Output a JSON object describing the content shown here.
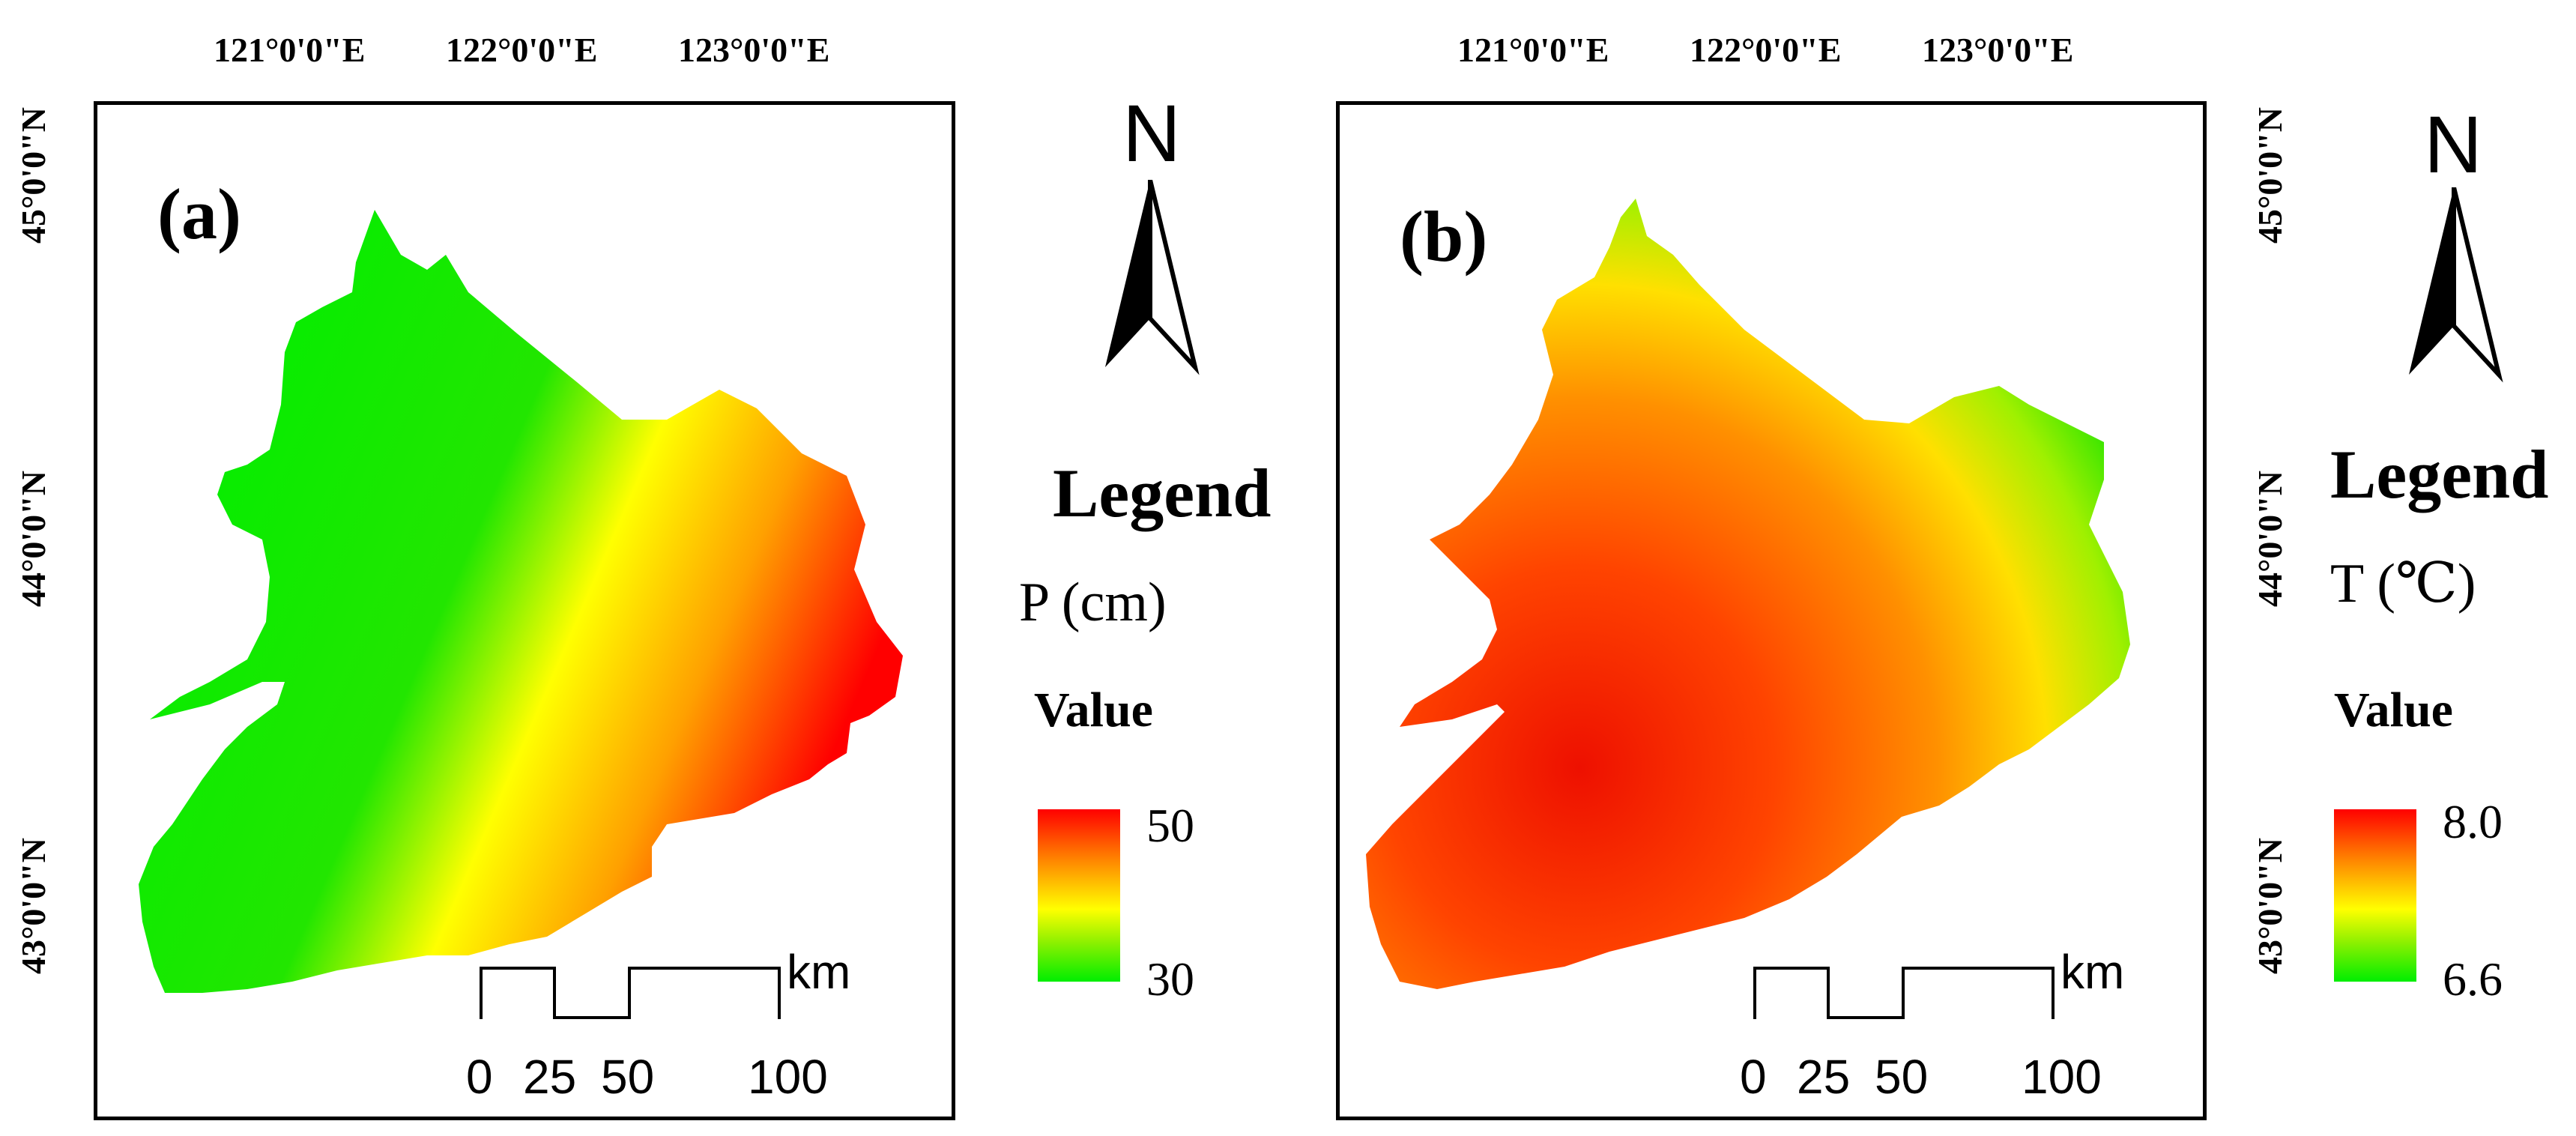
{
  "panels": [
    {
      "label": "(a)",
      "lon_labels": [
        "121°0'0\"E",
        "122°0'0\"E",
        "123°0'0\"E"
      ],
      "lat_labels": [
        "45°0'0\"N",
        "44°0'0\"N",
        "43°0'0\"N"
      ],
      "north": "N",
      "legend": {
        "title": "Legend",
        "variable": "P  (cm)",
        "value_label": "Value",
        "max": "50",
        "min": "30",
        "max_color": "#ff0000",
        "mid_color": "#ffff00",
        "min_color": "#00ff00"
      },
      "scale": {
        "unit": "km",
        "ticks": [
          "0",
          "25",
          "50",
          "100"
        ]
      }
    },
    {
      "label": "(b)",
      "lon_labels": [
        "121°0'0\"E",
        "122°0'0\"E",
        "123°0'0\"E"
      ],
      "lat_labels": [
        "45°0'0\"N",
        "44°0'0\"N",
        "43°0'0\"N"
      ],
      "north": "N",
      "legend": {
        "title": "Legend",
        "variable": "T (℃)",
        "value_label": "Value",
        "max": "8.0",
        "min": "6.6",
        "max_color": "#ff0000",
        "mid_color": "#ffff00",
        "min_color": "#00ff00"
      },
      "scale": {
        "unit": "km",
        "ticks": [
          "0",
          "25",
          "50",
          "100"
        ]
      }
    }
  ]
}
